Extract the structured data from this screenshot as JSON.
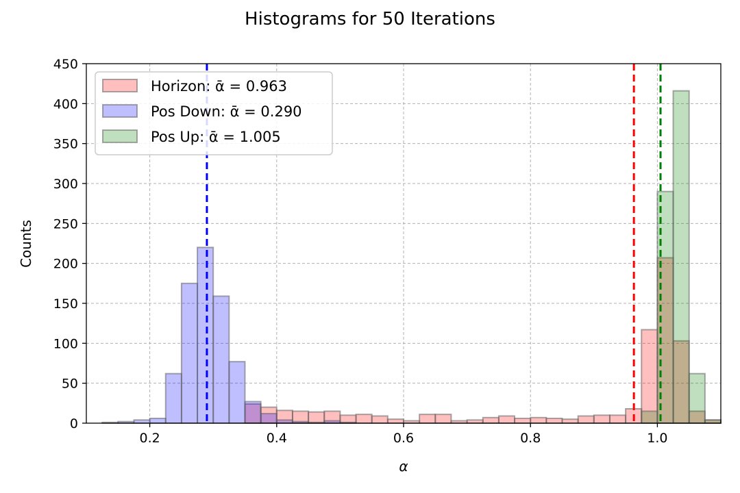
{
  "chart_data": {
    "type": "bar",
    "title": "Histograms for 50 Iterations",
    "xlabel": "α",
    "ylabel": "Counts",
    "xlim": [
      0.1,
      1.1
    ],
    "ylim": [
      0,
      450
    ],
    "xticks": [
      0.2,
      0.4,
      0.6,
      0.8,
      1.0
    ],
    "xtick_labels": [
      "0.2",
      "0.4",
      "0.6",
      "0.8",
      "1.0"
    ],
    "yticks": [
      0,
      50,
      100,
      150,
      200,
      250,
      300,
      350,
      400,
      450
    ],
    "ytick_labels": [
      "0",
      "50",
      "100",
      "150",
      "200",
      "250",
      "300",
      "350",
      "400",
      "450"
    ],
    "grid": true,
    "legend_position": "upper-left",
    "bin_edges": [
      0.1,
      0.125,
      0.15,
      0.175,
      0.2,
      0.225,
      0.25,
      0.275,
      0.3,
      0.325,
      0.35,
      0.375,
      0.4,
      0.425,
      0.45,
      0.475,
      0.5,
      0.525,
      0.55,
      0.575,
      0.6,
      0.625,
      0.65,
      0.675,
      0.7,
      0.725,
      0.75,
      0.775,
      0.8,
      0.825,
      0.85,
      0.875,
      0.9,
      0.925,
      0.95,
      0.975,
      1.0,
      1.025,
      1.05,
      1.075
    ],
    "series": [
      {
        "name": "Horizon",
        "legend_label": "Horizon: ᾱ = 0.963",
        "mean": 0.963,
        "color": "#ff0000",
        "fill": "rgba(255,0,0,0.25)",
        "values": [
          0,
          0,
          0,
          0,
          0,
          0,
          0,
          0,
          0,
          0,
          24,
          20,
          16,
          15,
          14,
          15,
          10,
          11,
          9,
          5,
          3,
          11,
          11,
          3,
          4,
          7,
          9,
          6,
          7,
          6,
          5,
          9,
          10,
          10,
          18,
          117,
          207,
          103,
          15,
          4
        ]
      },
      {
        "name": "Pos Down",
        "legend_label": "Pos Down: ᾱ = 0.290",
        "mean": 0.29,
        "color": "#0000ff",
        "fill": "rgba(0,0,255,0.25)",
        "values": [
          0,
          1,
          2,
          4,
          6,
          62,
          175,
          220,
          159,
          77,
          27,
          12,
          4,
          2,
          1,
          3,
          1,
          0,
          0,
          0,
          0,
          0,
          0,
          0,
          0,
          0,
          0,
          0,
          0,
          0,
          0,
          0,
          0,
          0,
          0,
          0,
          0,
          0,
          0,
          0
        ]
      },
      {
        "name": "Pos Up",
        "legend_label": "Pos Up: ᾱ = 1.005",
        "mean": 1.005,
        "color": "#008000",
        "fill": "rgba(0,128,0,0.25)",
        "values": [
          0,
          0,
          0,
          0,
          0,
          0,
          0,
          0,
          0,
          0,
          0,
          0,
          0,
          0,
          0,
          0,
          0,
          0,
          0,
          0,
          0,
          0,
          0,
          0,
          0,
          0,
          0,
          0,
          0,
          0,
          0,
          0,
          0,
          0,
          0,
          15,
          290,
          416,
          62,
          4
        ]
      }
    ]
  }
}
